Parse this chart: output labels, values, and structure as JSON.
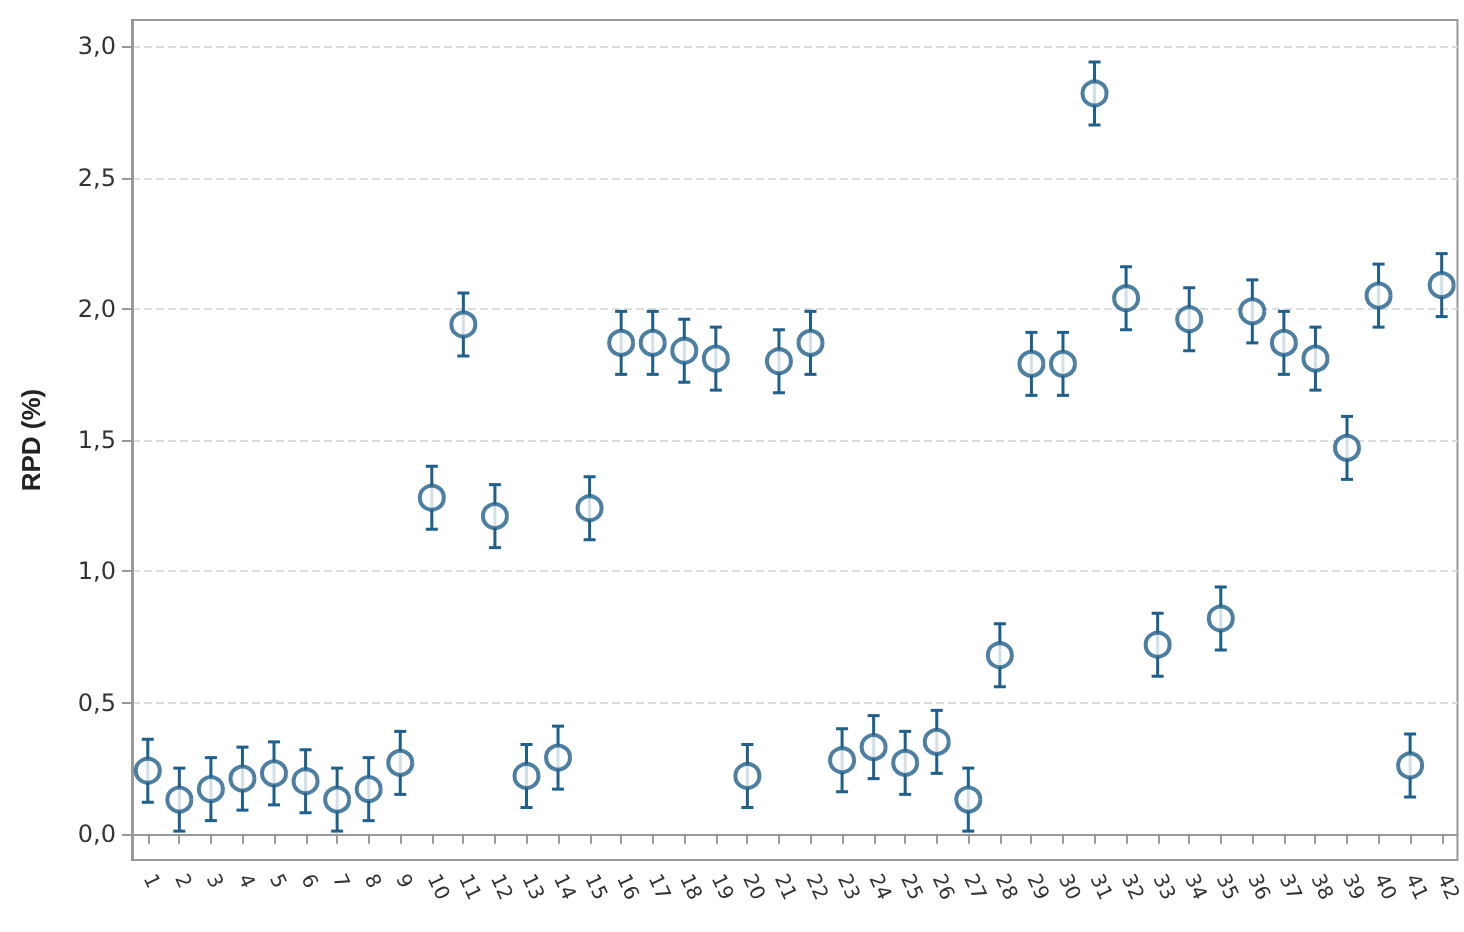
{
  "chart_data": {
    "type": "scatter",
    "ylabel": "RPD (%)",
    "categories": [
      "1",
      "2",
      "3",
      "4",
      "5",
      "6",
      "7",
      "8",
      "9",
      "10",
      "11",
      "12",
      "13",
      "14",
      "15",
      "16",
      "17",
      "18",
      "19",
      "20",
      "21",
      "22",
      "23",
      "24",
      "25",
      "26",
      "27",
      "28",
      "29",
      "30",
      "31",
      "32",
      "33",
      "34",
      "35",
      "36",
      "37",
      "38",
      "39",
      "40",
      "41",
      "42"
    ],
    "series": [
      {
        "color": "#1f5f8b",
        "values": [
          0.24,
          0.13,
          0.17,
          0.21,
          0.23,
          0.2,
          0.13,
          0.17,
          0.27,
          1.28,
          1.94,
          1.21,
          0.22,
          0.29,
          1.24,
          1.87,
          1.87,
          1.84,
          1.81,
          0.22,
          1.8,
          1.87,
          0.28,
          0.33,
          0.27,
          0.35,
          0.13,
          0.68,
          1.79,
          1.79,
          2.82,
          2.04,
          0.72,
          1.96,
          0.82,
          1.99,
          1.87,
          1.81,
          1.47,
          2.05,
          0.26,
          2.09
        ],
        "errors": [
          0.12,
          0.12,
          0.12,
          0.12,
          0.12,
          0.12,
          0.12,
          0.12,
          0.12,
          0.12,
          0.12,
          0.12,
          0.12,
          0.12,
          0.12,
          0.12,
          0.12,
          0.12,
          0.12,
          0.12,
          0.12,
          0.12,
          0.12,
          0.12,
          0.12,
          0.12,
          0.12,
          0.12,
          0.12,
          0.12,
          0.12,
          0.12,
          0.12,
          0.12,
          0.12,
          0.12,
          0.12,
          0.12,
          0.12,
          0.12,
          0.12,
          0.12
        ]
      }
    ],
    "ylim": [
      -0.1,
      3.1
    ],
    "yticks": [
      {
        "value": 0,
        "label": "0,0"
      },
      {
        "value": 0.5,
        "label": "0,5"
      },
      {
        "value": 1,
        "label": "1,0"
      },
      {
        "value": 1.5,
        "label": "1,5"
      },
      {
        "value": 2,
        "label": "2,0"
      },
      {
        "value": 2.5,
        "label": "2,5"
      },
      {
        "value": 3,
        "label": "3,0"
      }
    ],
    "grid": "y",
    "marker": "circle"
  }
}
